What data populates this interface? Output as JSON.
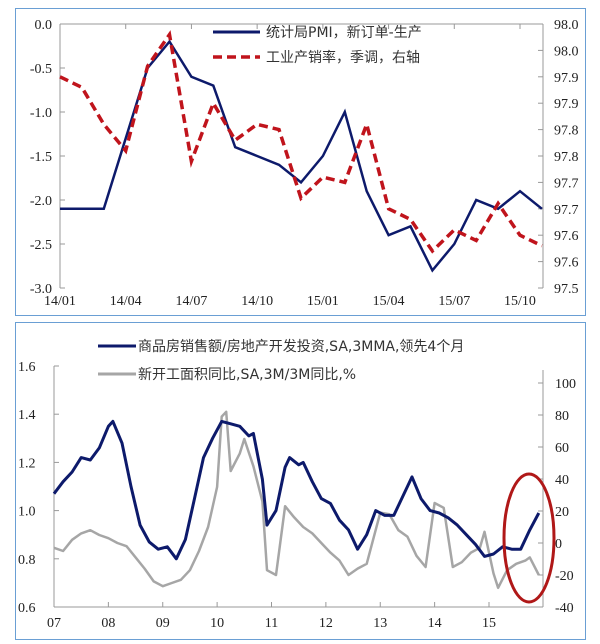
{
  "chart_data": [
    {
      "type": "line",
      "title": "",
      "x": [
        "14/01",
        "14/02",
        "14/03",
        "14/04",
        "14/05",
        "14/06",
        "14/07",
        "14/08",
        "14/09",
        "14/10",
        "14/11",
        "14/12",
        "15/01",
        "15/02",
        "15/03",
        "15/04",
        "15/05",
        "15/06",
        "15/07",
        "15/08",
        "15/09",
        "15/10",
        "15/11"
      ],
      "x_tick_labels": [
        "14/01",
        "14/04",
        "14/07",
        "14/10",
        "15/01",
        "15/04",
        "15/07",
        "15/10"
      ],
      "series": [
        {
          "name": "统计局PMI，新订单-生产",
          "axis": "left",
          "color": "#0d1a6b",
          "style": "solid",
          "values": [
            -2.1,
            -2.1,
            -2.1,
            -1.3,
            -0.5,
            -0.2,
            -0.6,
            -0.7,
            -1.4,
            -1.5,
            -1.6,
            -1.8,
            -1.5,
            -1.0,
            -1.9,
            -2.4,
            -2.3,
            -2.8,
            -2.5,
            -2.0,
            -2.1,
            -1.9,
            -2.1
          ]
        },
        {
          "name": "工业产销率，季调，右轴",
          "axis": "right",
          "color": "#c0141c",
          "style": "dashed",
          "values": [
            97.9,
            97.88,
            97.81,
            97.76,
            97.92,
            97.98,
            97.74,
            97.85,
            97.78,
            97.81,
            97.8,
            97.67,
            97.71,
            97.7,
            97.81,
            97.65,
            97.63,
            97.57,
            97.61,
            97.59,
            97.66,
            97.6,
            97.58
          ]
        }
      ],
      "y_left": {
        "min": -3.0,
        "max": 0.0,
        "ticks": [
          "0.0",
          "-0.5",
          "-1.0",
          "-1.5",
          "-2.0",
          "-2.5",
          "-3.0"
        ]
      },
      "y_right": {
        "min": 97.5,
        "max": 98.0,
        "ticks": [
          "98.0",
          "98.0",
          "97.9",
          "97.9",
          "97.8",
          "97.8",
          "97.7",
          "97.7",
          "97.6",
          "97.6",
          "97.5"
        ]
      },
      "xlabel": "",
      "ylabel": "",
      "grid": false,
      "legend_position": "top-right"
    },
    {
      "type": "line",
      "title": "",
      "x_tick_labels": [
        "07",
        "08",
        "09",
        "10",
        "11",
        "12",
        "13",
        "14",
        "15"
      ],
      "x_range": [
        "2007-01",
        "2015-12"
      ],
      "series": [
        {
          "name": "商品房销售额/房地产开发投资,SA,3MMA,领先4个月",
          "axis": "left",
          "color": "#0d1a6b",
          "style": "solid",
          "points": [
            [
              "2007-01",
              1.07
            ],
            [
              "2007-03",
              1.12
            ],
            [
              "2007-05",
              1.16
            ],
            [
              "2007-07",
              1.22
            ],
            [
              "2007-09",
              1.21
            ],
            [
              "2007-11",
              1.26
            ],
            [
              "2008-01",
              1.35
            ],
            [
              "2008-02",
              1.37
            ],
            [
              "2008-04",
              1.28
            ],
            [
              "2008-06",
              1.1
            ],
            [
              "2008-08",
              0.94
            ],
            [
              "2008-10",
              0.87
            ],
            [
              "2008-12",
              0.84
            ],
            [
              "2009-02",
              0.85
            ],
            [
              "2009-04",
              0.8
            ],
            [
              "2009-06",
              0.88
            ],
            [
              "2009-08",
              1.05
            ],
            [
              "2009-10",
              1.22
            ],
            [
              "2009-12",
              1.3
            ],
            [
              "2010-02",
              1.37
            ],
            [
              "2010-04",
              1.36
            ],
            [
              "2010-06",
              1.35
            ],
            [
              "2010-08",
              1.31
            ],
            [
              "2010-09",
              1.32
            ],
            [
              "2010-11",
              1.13
            ],
            [
              "2010-12",
              0.94
            ],
            [
              "2011-02",
              1.0
            ],
            [
              "2011-04",
              1.18
            ],
            [
              "2011-05",
              1.22
            ],
            [
              "2011-07",
              1.19
            ],
            [
              "2011-08",
              1.2
            ],
            [
              "2011-10",
              1.12
            ],
            [
              "2011-12",
              1.05
            ],
            [
              "2012-02",
              1.03
            ],
            [
              "2012-04",
              0.96
            ],
            [
              "2012-06",
              0.92
            ],
            [
              "2012-08",
              0.84
            ],
            [
              "2012-10",
              0.9
            ],
            [
              "2012-12",
              1.0
            ],
            [
              "2013-02",
              0.98
            ],
            [
              "2013-04",
              0.98
            ],
            [
              "2013-06",
              1.06
            ],
            [
              "2013-08",
              1.14
            ],
            [
              "2013-10",
              1.05
            ],
            [
              "2013-12",
              1.0
            ],
            [
              "2014-02",
              0.99
            ],
            [
              "2014-04",
              0.97
            ],
            [
              "2014-06",
              0.94
            ],
            [
              "2014-08",
              0.9
            ],
            [
              "2014-10",
              0.86
            ],
            [
              "2014-12",
              0.81
            ],
            [
              "2015-02",
              0.82
            ],
            [
              "2015-04",
              0.85
            ],
            [
              "2015-06",
              0.84
            ],
            [
              "2015-08",
              0.84
            ],
            [
              "2015-10",
              0.92
            ],
            [
              "2015-12",
              0.99
            ]
          ]
        },
        {
          "name": "新开工面积同比,SA,3M/3M同比,%",
          "axis": "right",
          "color": "#a6a6a6",
          "style": "solid",
          "points": [
            [
              "2007-01",
              -3
            ],
            [
              "2007-03",
              -5
            ],
            [
              "2007-05",
              2
            ],
            [
              "2007-07",
              6
            ],
            [
              "2007-09",
              8
            ],
            [
              "2007-11",
              5
            ],
            [
              "2008-01",
              3
            ],
            [
              "2008-03",
              0
            ],
            [
              "2008-05",
              -2
            ],
            [
              "2008-07",
              -9
            ],
            [
              "2008-09",
              -16
            ],
            [
              "2008-11",
              -24
            ],
            [
              "2009-01",
              -27
            ],
            [
              "2009-03",
              -25
            ],
            [
              "2009-05",
              -23
            ],
            [
              "2009-07",
              -17
            ],
            [
              "2009-09",
              -5
            ],
            [
              "2009-11",
              10
            ],
            [
              "2010-01",
              35
            ],
            [
              "2010-02",
              79
            ],
            [
              "2010-03",
              82
            ],
            [
              "2010-04",
              45
            ],
            [
              "2010-06",
              56
            ],
            [
              "2010-07",
              65
            ],
            [
              "2010-09",
              48
            ],
            [
              "2010-11",
              26
            ],
            [
              "2010-12",
              -17
            ],
            [
              "2011-02",
              -20
            ],
            [
              "2011-04",
              23
            ],
            [
              "2011-06",
              16
            ],
            [
              "2011-08",
              10
            ],
            [
              "2011-10",
              6
            ],
            [
              "2011-12",
              0
            ],
            [
              "2012-02",
              -6
            ],
            [
              "2012-04",
              -11
            ],
            [
              "2012-06",
              -20
            ],
            [
              "2012-08",
              -16
            ],
            [
              "2012-10",
              -13
            ],
            [
              "2013-01",
              19
            ],
            [
              "2013-03",
              18
            ],
            [
              "2013-05",
              8
            ],
            [
              "2013-07",
              4
            ],
            [
              "2013-09",
              -8
            ],
            [
              "2013-11",
              -15
            ],
            [
              "2014-01",
              25
            ],
            [
              "2014-03",
              22
            ],
            [
              "2014-05",
              -15
            ],
            [
              "2014-07",
              -12
            ],
            [
              "2014-09",
              -6
            ],
            [
              "2014-11",
              -3
            ],
            [
              "2014-12",
              7
            ],
            [
              "2015-02",
              -19
            ],
            [
              "2015-03",
              -28
            ],
            [
              "2015-05",
              -17
            ],
            [
              "2015-07",
              -13
            ],
            [
              "2015-09",
              -11
            ],
            [
              "2015-10",
              -9
            ],
            [
              "2015-12",
              -20
            ]
          ]
        }
      ],
      "y_left": {
        "min": 0.6,
        "max": 1.6,
        "ticks": [
          "1.6",
          "1.4",
          "1.2",
          "1.0",
          "0.8",
          "0.6"
        ]
      },
      "y_right": {
        "min": -40,
        "max": 100,
        "ticks": [
          "100",
          "80",
          "60",
          "40",
          "20",
          "0",
          "-20",
          "-40"
        ]
      },
      "annotation": "red ellipse highlighting 2015 H2",
      "xlabel": "",
      "ylabel": "",
      "grid": false,
      "legend_position": "top"
    }
  ],
  "chart1": {
    "legend": [
      "统计局PMI，新订单-生产",
      "工业产销率，季调，右轴"
    ],
    "x_ticks": [
      "14/01",
      "14/04",
      "14/07",
      "14/10",
      "15/01",
      "15/04",
      "15/07",
      "15/10"
    ],
    "y_left_ticks": [
      "0.0",
      "-0.5",
      "-1.0",
      "-1.5",
      "-2.0",
      "-2.5",
      "-3.0"
    ],
    "y_right_ticks": [
      "98.0",
      "98.0",
      "97.9",
      "97.9",
      "97.8",
      "97.8",
      "97.7",
      "97.7",
      "97.6",
      "97.6",
      "97.5"
    ]
  },
  "chart2": {
    "legend": [
      "商品房销售额/房地产开发投资,SA,3MMA,领先4个月",
      "新开工面积同比,SA,3M/3M同比,%"
    ],
    "x_ticks": [
      "07",
      "08",
      "09",
      "10",
      "11",
      "12",
      "13",
      "14",
      "15"
    ],
    "y_left_ticks": [
      "1.6",
      "1.4",
      "1.2",
      "1.0",
      "0.8",
      "0.6"
    ],
    "y_right_ticks": [
      "100",
      "80",
      "60",
      "40",
      "20",
      "0",
      "-20",
      "-40"
    ]
  },
  "colors": {
    "navy": "#0d1a6b",
    "red": "#c0141c",
    "gray": "#a6a6a6",
    "border": "#6a9fd4",
    "ellipse": "#b01818"
  }
}
